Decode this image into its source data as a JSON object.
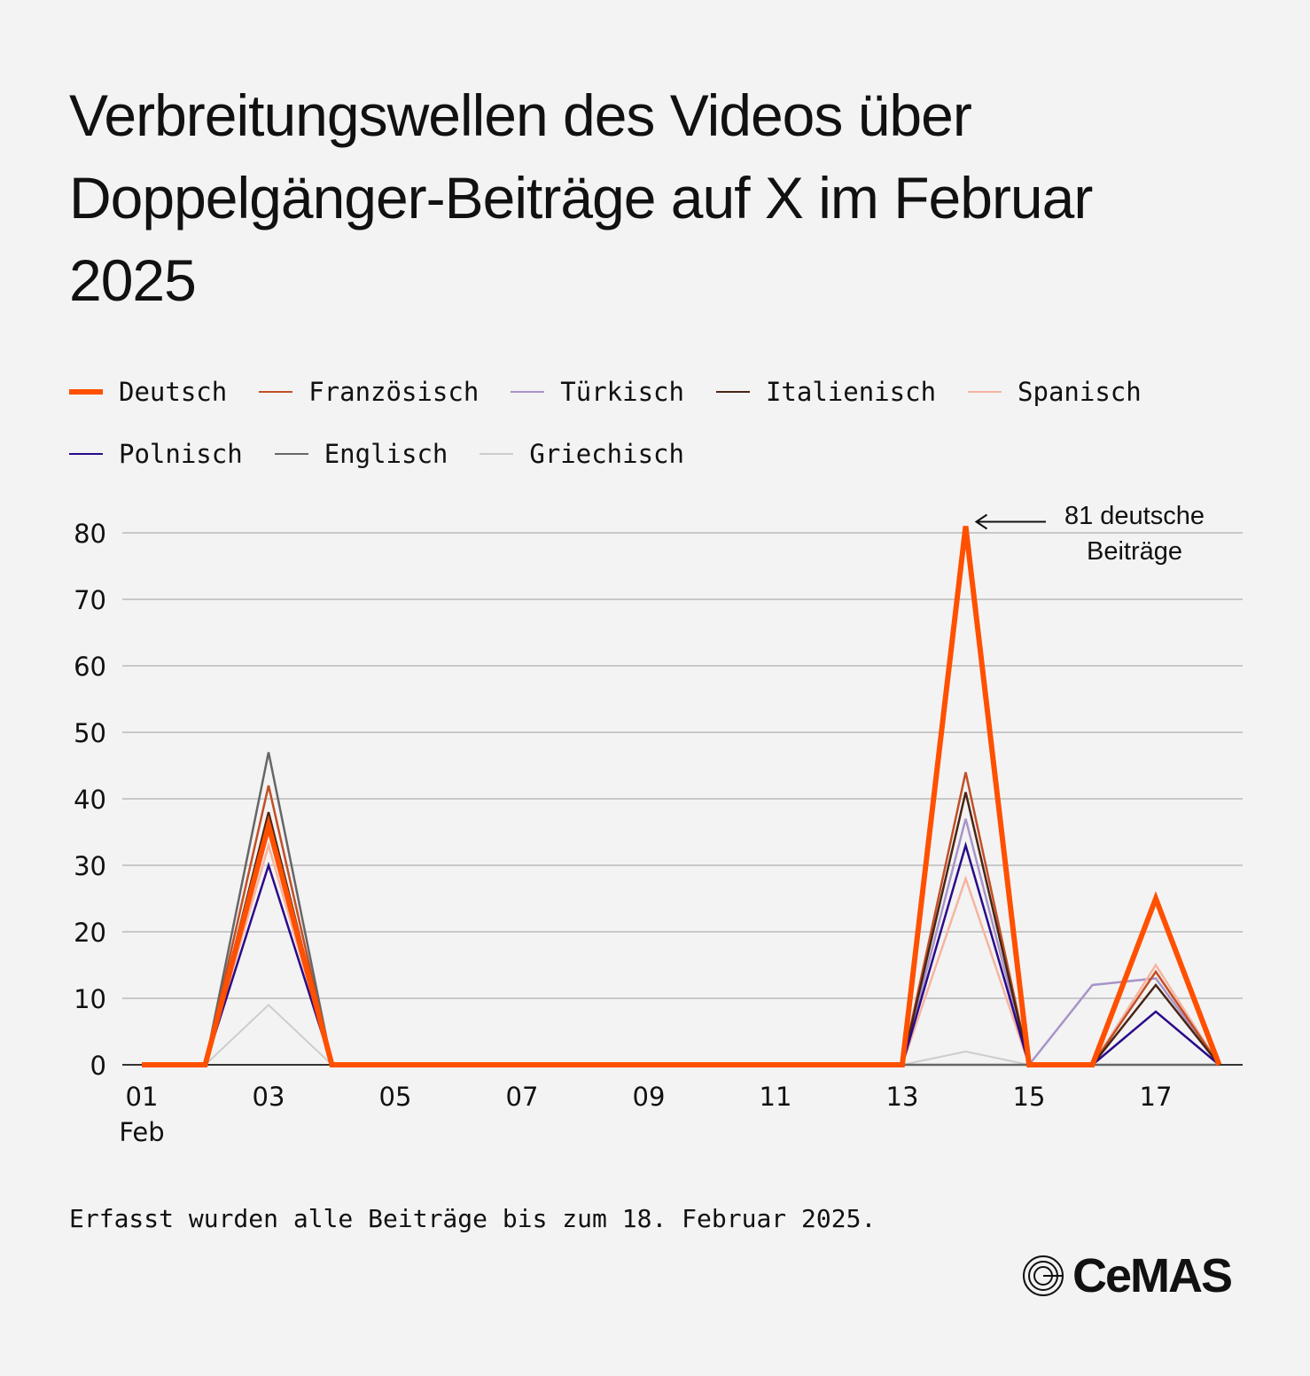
{
  "chart_data": {
    "type": "line",
    "title": "Verbreitungswellen des Videos über Doppelgänger-Beiträge auf X im Februar 2025",
    "x": [
      1,
      2,
      3,
      4,
      5,
      6,
      7,
      8,
      9,
      10,
      11,
      12,
      13,
      14,
      15,
      16,
      17,
      18
    ],
    "xticks": [
      "01",
      "03",
      "05",
      "07",
      "09",
      "11",
      "13",
      "15",
      "17"
    ],
    "xtick_values": [
      1,
      3,
      5,
      7,
      9,
      11,
      13,
      15,
      17
    ],
    "xsub": "Feb",
    "yticks": [
      "0",
      "10",
      "20",
      "30",
      "40",
      "50",
      "60",
      "70",
      "80"
    ],
    "ylim": [
      0,
      80
    ],
    "grid": true,
    "legend_position": "top",
    "series": [
      {
        "name": "Griechisch",
        "color": "#cdcdcd",
        "width": 2,
        "values": [
          0,
          0,
          9,
          0,
          0,
          0,
          0,
          0,
          0,
          0,
          0,
          0,
          0,
          2,
          0,
          0,
          0,
          0
        ]
      },
      {
        "name": "Englisch",
        "color": "#666666",
        "width": 2.5,
        "values": [
          0,
          0,
          47,
          0,
          0,
          0,
          0,
          0,
          0,
          0,
          0,
          0,
          0,
          0,
          0,
          0,
          0,
          0
        ]
      },
      {
        "name": "Türkisch",
        "color": "#a894c8",
        "width": 2.5,
        "values": [
          0,
          0,
          37,
          0,
          0,
          0,
          0,
          0,
          0,
          0,
          0,
          0,
          0,
          37,
          0,
          12,
          13,
          0
        ]
      },
      {
        "name": "Spanisch",
        "color": "#f6b5a0",
        "width": 2.5,
        "values": [
          0,
          0,
          33,
          0,
          0,
          0,
          0,
          0,
          0,
          0,
          0,
          0,
          0,
          28,
          0,
          0,
          15,
          0
        ]
      },
      {
        "name": "Französisch",
        "color": "#c24f27",
        "width": 2.5,
        "values": [
          0,
          0,
          42,
          0,
          0,
          0,
          0,
          0,
          0,
          0,
          0,
          0,
          0,
          44,
          0,
          0,
          14,
          0
        ]
      },
      {
        "name": "Italienisch",
        "color": "#4a2414",
        "width": 2.5,
        "values": [
          0,
          0,
          38,
          0,
          0,
          0,
          0,
          0,
          0,
          0,
          0,
          0,
          0,
          41,
          0,
          0,
          12,
          0
        ]
      },
      {
        "name": "Polnisch",
        "color": "#2a0a8a",
        "width": 2.5,
        "values": [
          0,
          0,
          30,
          0,
          0,
          0,
          0,
          0,
          0,
          0,
          0,
          0,
          0,
          33,
          0,
          0,
          8,
          0
        ]
      },
      {
        "name": "Deutsch",
        "color": "#ff5000",
        "width": 6,
        "values": [
          0,
          0,
          36,
          0,
          0,
          0,
          0,
          0,
          0,
          0,
          0,
          0,
          0,
          81,
          0,
          0,
          25,
          0
        ]
      }
    ],
    "annotation": {
      "text_line1": "81 deutsche",
      "text_line2": "Beiträge",
      "x": 14,
      "y": 81
    }
  },
  "legend": [
    {
      "name": "Deutsch",
      "color": "#ff5000"
    },
    {
      "name": "Französisch",
      "color": "#c24f27"
    },
    {
      "name": "Türkisch",
      "color": "#a894c8"
    },
    {
      "name": "Italienisch",
      "color": "#4a2414"
    },
    {
      "name": "Spanisch",
      "color": "#f6b5a0"
    },
    {
      "name": "Polnisch",
      "color": "#2a0a8a"
    },
    {
      "name": "Englisch",
      "color": "#666666"
    },
    {
      "name": "Griechisch",
      "color": "#cdcdcd"
    }
  ],
  "footnote": "Erfasst wurden alle Beiträge bis zum 18. Februar 2025.",
  "logo": "CeMAS"
}
